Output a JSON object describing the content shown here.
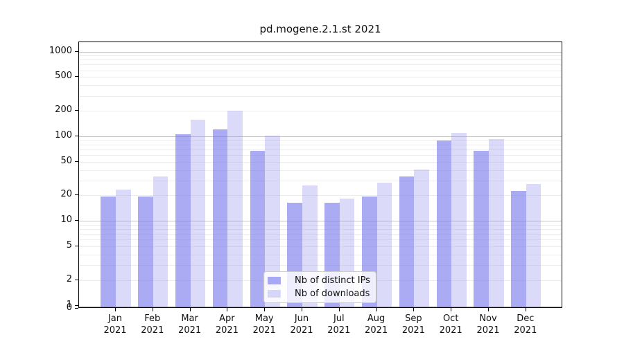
{
  "chart_data": {
    "type": "bar",
    "title": "pd.mogene.2.1.st 2021",
    "categories": [
      "Jan 2021",
      "Feb 2021",
      "Mar 2021",
      "Apr 2021",
      "May 2021",
      "Jun 2021",
      "Jul 2021",
      "Aug 2021",
      "Sep 2021",
      "Oct 2021",
      "Nov 2021",
      "Dec 2021"
    ],
    "series": [
      {
        "name": "Nb of distinct IPs",
        "color": "#7777EE",
        "alpha": 0.62,
        "values": [
          19,
          19,
          103,
          118,
          66,
          16,
          16,
          19,
          33,
          88,
          66,
          22
        ]
      },
      {
        "name": "Nb of downloads",
        "color": "#9999EE",
        "alpha": 0.35,
        "values": [
          23,
          33,
          154,
          196,
          100,
          26,
          18,
          28,
          40,
          108,
          91,
          27
        ]
      }
    ],
    "yscale": "log-with-zero-baseline",
    "yticks": [
      0,
      1,
      2,
      5,
      10,
      20,
      50,
      100,
      200,
      500,
      1000
    ],
    "ylim": [
      0,
      1300
    ],
    "grid": true,
    "legend_position": "lower center",
    "axis_color": "#000000"
  }
}
